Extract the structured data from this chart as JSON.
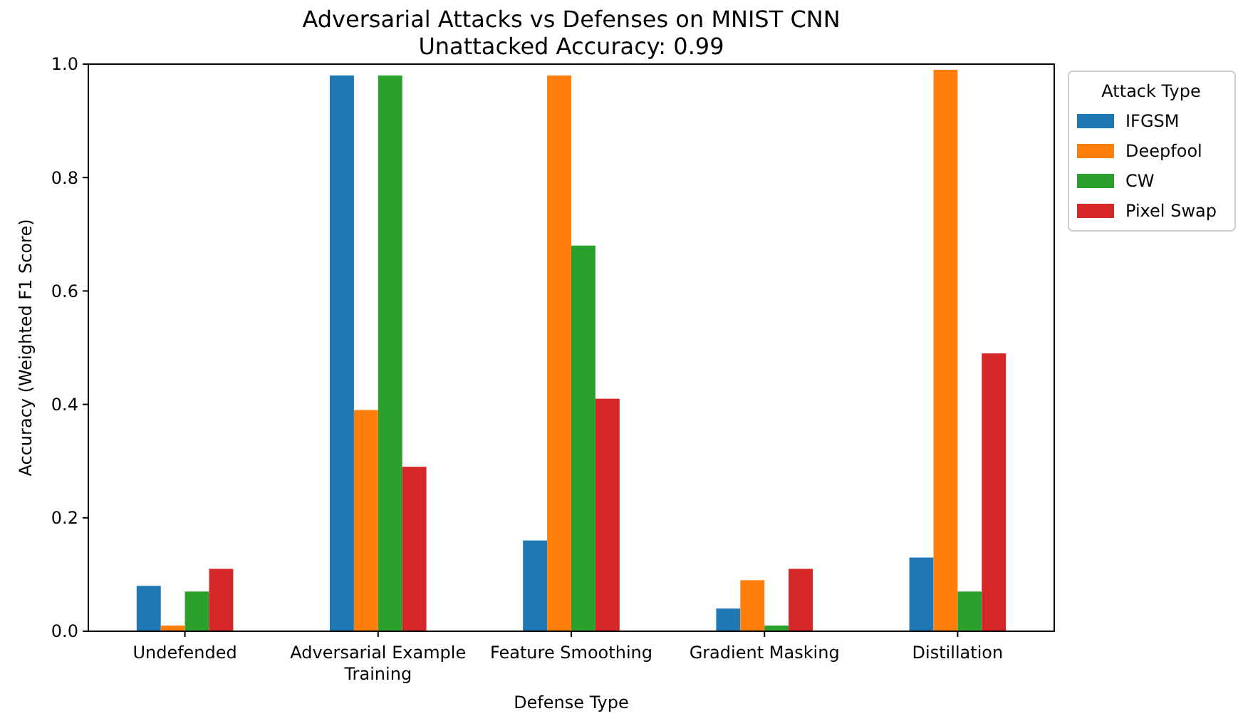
{
  "chart_data": {
    "type": "bar",
    "title": "Adversarial Attacks vs Defenses on MNIST CNN",
    "subtitle": "Unattacked Accuracy: 0.99",
    "xlabel": "Defense Type",
    "ylabel": "Accuracy (Weighted F1 Score)",
    "legend_title": "Attack Type",
    "legend": "right",
    "categories": [
      "Undefended",
      "Adversarial Example Training",
      "Feature Smoothing",
      "Gradient Masking",
      "Distillation"
    ],
    "series": [
      {
        "name": "IFGSM",
        "color": "#1f77b4",
        "values": [
          0.08,
          0.98,
          0.16,
          0.04,
          0.13
        ]
      },
      {
        "name": "Deepfool",
        "color": "#ff7f0e",
        "values": [
          0.01,
          0.39,
          0.98,
          0.09,
          0.99
        ]
      },
      {
        "name": "CW",
        "color": "#2ca02c",
        "values": [
          0.07,
          0.98,
          0.68,
          0.01,
          0.07
        ]
      },
      {
        "name": "Pixel Swap",
        "color": "#d62728",
        "values": [
          0.11,
          0.29,
          0.41,
          0.11,
          0.49
        ]
      }
    ],
    "ylim": [
      0,
      1
    ],
    "yticks": [
      {
        "value": 0,
        "label": "0.0"
      },
      {
        "value": 0.2,
        "label": "0.2"
      },
      {
        "value": 0.4,
        "label": "0.4"
      },
      {
        "value": 0.6,
        "label": "0.6"
      },
      {
        "value": 0.8,
        "label": "0.8"
      },
      {
        "value": 1,
        "label": "1.0"
      }
    ],
    "grid": false
  }
}
